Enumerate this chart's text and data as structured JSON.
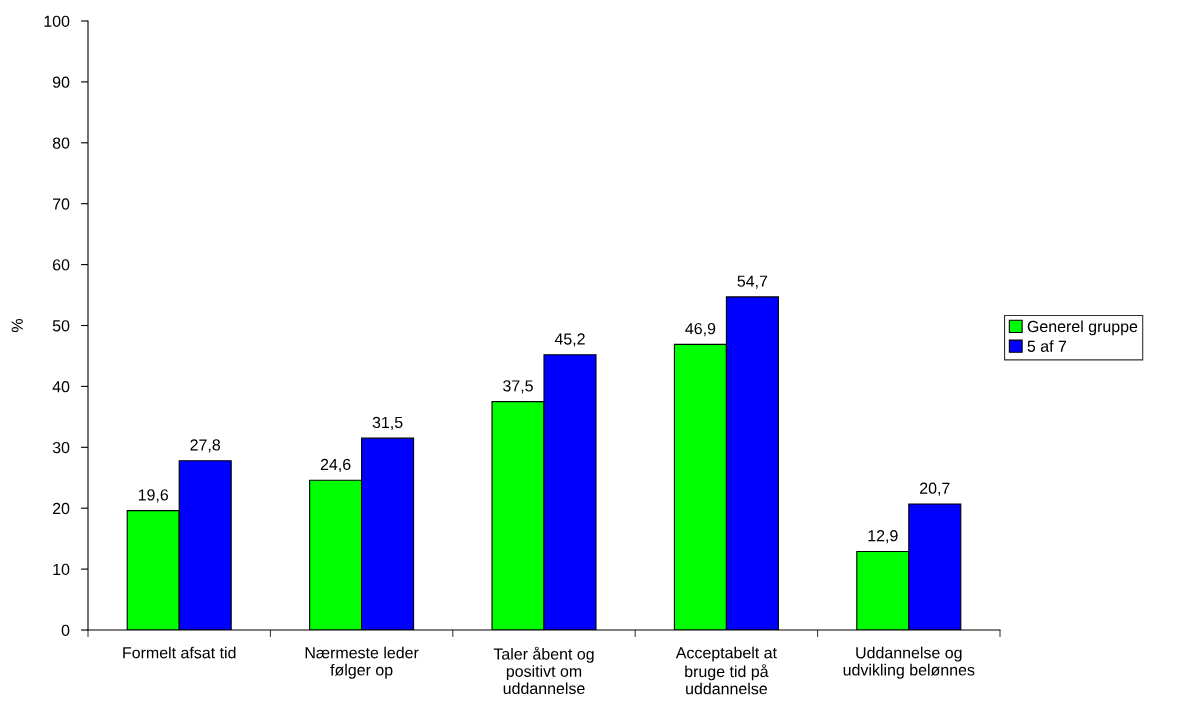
{
  "chart_data": {
    "type": "bar",
    "categories": [
      "Formelt afsat tid",
      "Nærmeste leder\nfølger op",
      "Taler åbent og\npositivt om\nuddannelse",
      "Acceptabelt at\nbruge tid på\nuddannelse",
      "Uddannelse og\nudvikling belønnes"
    ],
    "series": [
      {
        "name": "Generel gruppe",
        "color": "#00ff00",
        "values": [
          19.6,
          24.6,
          37.5,
          46.9,
          12.9
        ],
        "value_labels": [
          "19,6",
          "24,6",
          "37,5",
          "46,9",
          "12,9"
        ]
      },
      {
        "name": "5 af 7",
        "color": "#0000ff",
        "values": [
          27.8,
          31.5,
          45.2,
          54.7,
          20.7
        ],
        "value_labels": [
          "27,8",
          "31,5",
          "45,2",
          "54,7",
          "20,7"
        ]
      }
    ],
    "ylabel": "%",
    "ylim": [
      0,
      100
    ],
    "yticks": [
      0,
      10,
      20,
      30,
      40,
      50,
      60,
      70,
      80,
      90,
      100
    ],
    "grid": false,
    "legend": "right"
  }
}
